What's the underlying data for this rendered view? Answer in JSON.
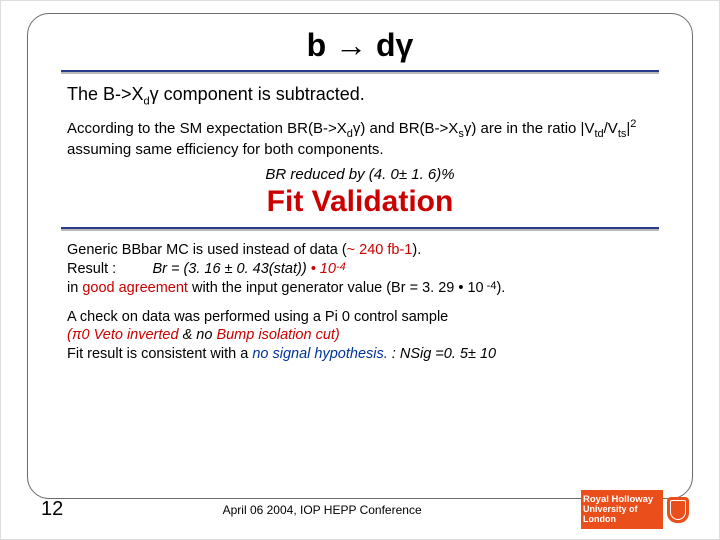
{
  "title": "b → dγ",
  "intro": "The B->Xdγ component is subtracted.",
  "sm_line": "According to the SM expectation BR(B->Xdγ) and BR(B->Xsγ) are in the ratio |Vtd/Vts|² assuming same efficiency for both components.",
  "br_reduced": "BR reduced by (4. 0± 1. 6)%",
  "fit_heading": "Fit Validation",
  "generic1a": "Generic BBbar MC is used instead of data (",
  "generic1b": "~ 240 fb-1",
  "generic1c": ").",
  "result_label": "Result :",
  "result_br": "Br = (3. 16 ± 0. 43(stat))",
  "result_factor": "• 10-4",
  "good_a": "in ",
  "good_b": "good agreement",
  "good_c": " with the input generator value (Br =  3. 29 • 10-4).",
  "check1": "A check on data was performed using a Pi 0 control sample",
  "check2a": "(π0 Veto inverted",
  "check2b": " & no ",
  "check2c": "Bump isolation cut)",
  "check3a": "Fit result is consistent with a ",
  "check3b": "no signal hypothesis.",
  "check3c": " :  NSig =0. 5± 10",
  "page_number": "12",
  "footer_center": "April 06 2004, IOP HEPP Conference",
  "logo_line1": "Royal Holloway",
  "logo_line2": "University of London",
  "colors": {
    "accent_red": "#cc0000",
    "rule_navy": "#293b8b",
    "logo_orange": "#e94e1b"
  }
}
